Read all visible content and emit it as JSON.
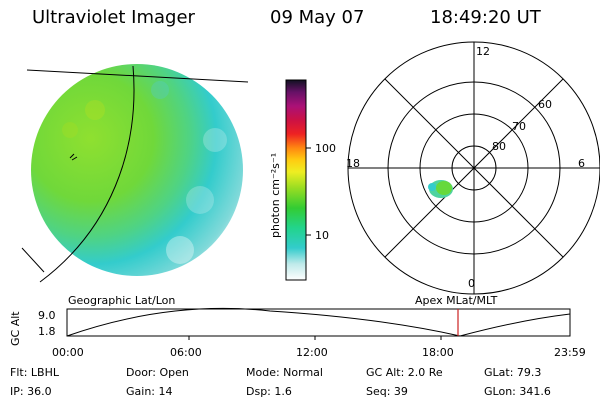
{
  "header": {
    "instrument": "Ultraviolet Imager",
    "date": "09 May 07",
    "time": "18:49:20 UT"
  },
  "colorbar": {
    "unit_label": "photon cm⁻²s⁻¹",
    "tick_labels": [
      "100",
      "10"
    ]
  },
  "polar_plot": {
    "mlt_labels": [
      "12",
      "18",
      "6",
      "0"
    ],
    "lat_labels": [
      "60",
      "70",
      "80"
    ]
  },
  "timeline": {
    "left_title": "Geographic Lat/Lon",
    "right_title": "Apex MLat/MLT",
    "ylabel": "GC Alt",
    "ytick_high": "9.0",
    "ytick_low": "1.8",
    "time_ticks": [
      "00:00",
      "06:00",
      "12:00",
      "18:00",
      "23:59"
    ]
  },
  "status": {
    "flt": "Flt: LBHL",
    "ip": "IP: 36.0",
    "door": "Door: Open",
    "gain": "Gain: 14",
    "mode": "Mode: Normal",
    "dsp": "Dsp:     1.6",
    "gc_alt": "GC Alt: 2.0 Re",
    "seq": "Seq: 39",
    "glat": "GLat:  79.3",
    "glon": "GLon: 341.6"
  },
  "colors": {
    "earth_green": "#66d93c",
    "earth_cyan": "#33cccc",
    "earth_pale": "#d8f0f0",
    "current_time_marker": "#cc2222"
  }
}
